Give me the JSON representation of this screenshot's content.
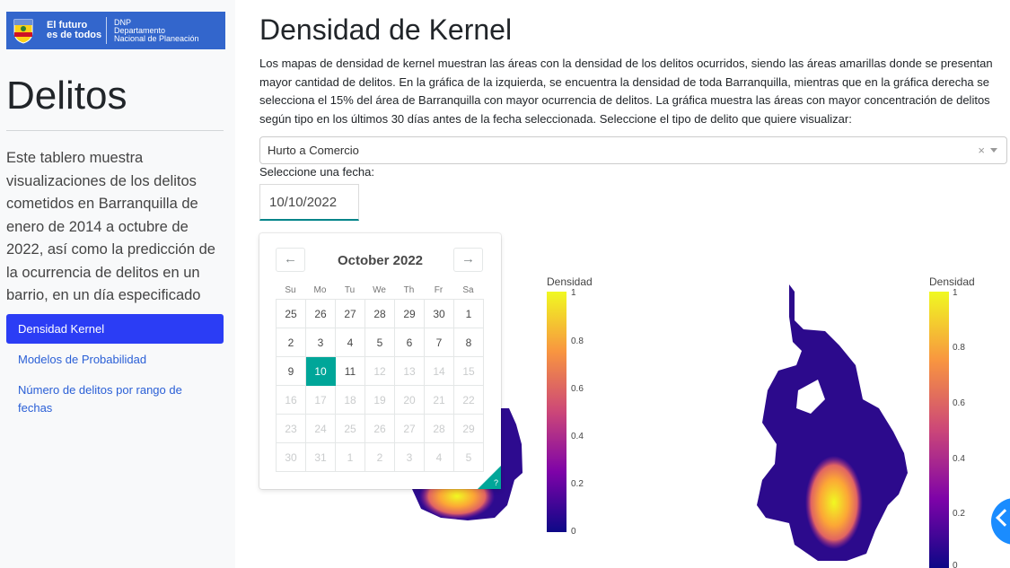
{
  "sidebar": {
    "logo": {
      "line1": "El futuro",
      "line2": "es de todos",
      "org1": "DNP",
      "org2": "Departamento",
      "org3": "Nacional de Planeación"
    },
    "title": "Delitos",
    "description": "Este tablero muestra visualizaciones de los delitos cometidos en Barranquilla de enero de 2014 a octubre de 2022, así como la predicción de la ocurrencia de delitos en un barrio, en un día especificado",
    "nav": [
      {
        "label": "Densidad Kernel",
        "active": true
      },
      {
        "label": "Modelos de Probabilidad",
        "active": false
      },
      {
        "label": "Número de delitos por rango de fechas",
        "active": false
      }
    ]
  },
  "main": {
    "title": "Densidad de Kernel",
    "intro": "Los mapas de densidad de kernel muestran las áreas con la densidad de los delitos ocurridos, siendo las áreas amarillas donde se presentan mayor cantidad de delitos. En la gráfica de la izquierda, se encuentra la densidad de toda Barranquilla, mientras que en la gráfica derecha se selecciona el 15% del área de Barranquilla con mayor ocurrencia de delitos. La gráfica muestra las áreas con mayor concentración de delitos según tipo en los últimos 30 días antes de la fecha seleccionada. Seleccione el tipo de delito que quiere visualizar:",
    "dropdown": {
      "value": "Hurto a Comercio",
      "clear": "×"
    },
    "date_label": "Seleccione una fecha:",
    "date_value": "10/10/2022"
  },
  "calendar": {
    "month": "October 2022",
    "prev": "←",
    "next": "→",
    "help": "?",
    "weekdays": [
      "Su",
      "Mo",
      "Tu",
      "We",
      "Th",
      "Fr",
      "Sa"
    ],
    "weeks": [
      [
        "25",
        "26",
        "27",
        "28",
        "29",
        "30",
        "1"
      ],
      [
        "2",
        "3",
        "4",
        "5",
        "6",
        "7",
        "8"
      ],
      [
        "9",
        "10",
        "11",
        "12",
        "13",
        "14",
        "15"
      ],
      [
        "16",
        "17",
        "18",
        "19",
        "20",
        "21",
        "22"
      ],
      [
        "23",
        "24",
        "25",
        "26",
        "27",
        "28",
        "29"
      ],
      [
        "30",
        "31",
        "1",
        "2",
        "3",
        "4",
        "5"
      ]
    ],
    "selected": "10"
  },
  "charts": {
    "colorbar_title": "Densidad",
    "left_ticks": [
      "1",
      "0.8",
      "0.6",
      "0.4",
      "0.2",
      "0"
    ],
    "right_ticks": [
      "1",
      "0.8",
      "0.6",
      "0.4",
      "0.2",
      "0"
    ],
    "colors": {
      "low": "#0d0887",
      "mid": "#cc4778",
      "high": "#f0f921"
    }
  }
}
